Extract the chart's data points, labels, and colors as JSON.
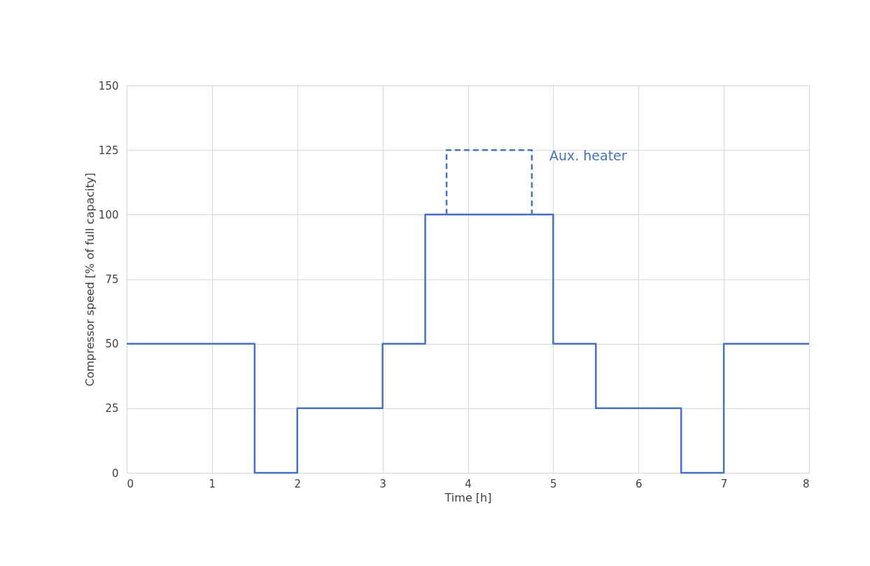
{
  "chart_data": {
    "type": "step",
    "xlabel": "Time [h]",
    "ylabel": "Compressor  speed  [% of full capacity]",
    "series": [
      {
        "color": "#4472c4",
        "line_style": "solid",
        "x": [
          0,
          1.5,
          2,
          3,
          3.5,
          5,
          5.5,
          6.5,
          7,
          8
        ],
        "values": [
          50,
          0,
          25,
          50,
          100,
          50,
          25,
          0,
          50,
          50
        ]
      },
      {
        "type": "line",
        "name": "Aux. heater",
        "color": "#4472c4",
        "line_style": "dashed",
        "x": [
          3.75,
          3.75,
          4.75,
          4.75
        ],
        "values": [
          100,
          125,
          125,
          100
        ]
      }
    ],
    "xlim": [
      0,
      8
    ],
    "xticks": [
      0,
      1,
      2,
      3,
      4,
      5,
      6,
      7,
      8
    ],
    "ylim": [
      0,
      150
    ],
    "yticks": [
      0,
      25,
      50,
      75,
      100,
      125,
      150
    ],
    "grid": true
  }
}
